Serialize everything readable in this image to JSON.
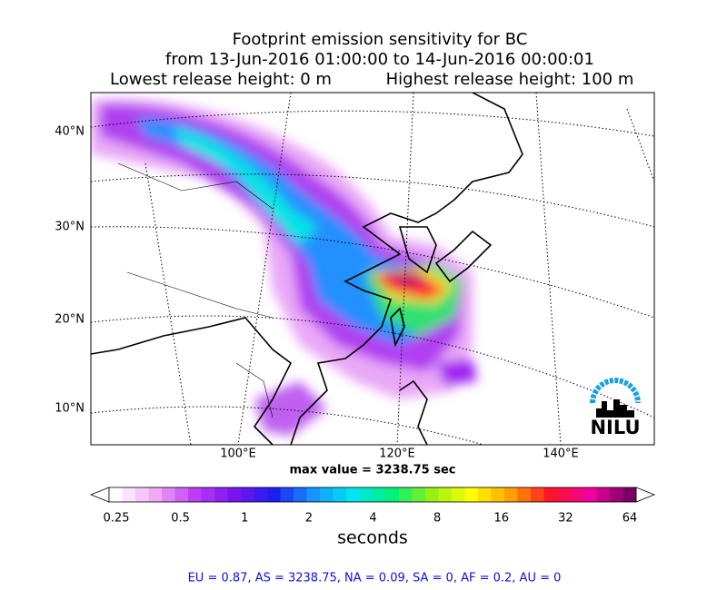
{
  "title": [
    "Footprint emission sensitivity for BC",
    "from 13-Jun-2016 01:00:00 to 14-Jun-2016 00:00:01"
  ],
  "release": {
    "lowest": "Lowest release height: 0 m",
    "highest": "Highest release height: 100 m"
  },
  "map": {
    "lat_labels": [
      "40°N",
      "30°N",
      "20°N",
      "10°N"
    ],
    "lon_labels": [
      "100°E",
      "120°E",
      "140°E"
    ],
    "max_value": "max value = 3238.75 sec",
    "logo": "NILU"
  },
  "colorbar": {
    "ticks": [
      "0.25",
      "0.5",
      "1",
      "2",
      "4",
      "8",
      "16",
      "32",
      "64"
    ],
    "label": "seconds"
  },
  "footer": "EU = 0.87,  AS = 3238.75,  NA = 0.09,  SA = 0,  AF = 0.2,  AU = 0"
}
